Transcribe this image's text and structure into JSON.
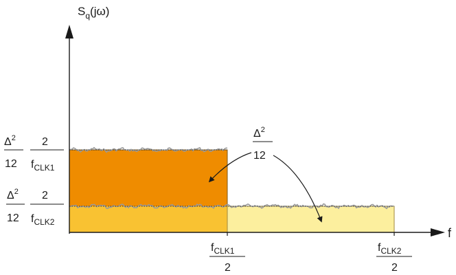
{
  "y_axis_label": {
    "main": "S",
    "sub": "q",
    "tail": "(jω)"
  },
  "x_axis_label": "f",
  "level_high": {
    "num_a": "Δ",
    "num_a_sup": "2",
    "den_a": "12",
    "num_b": "2",
    "den_b_main": "f",
    "den_b_sub": "CLK1"
  },
  "level_low": {
    "num_a": "Δ",
    "num_a_sup": "2",
    "den_a": "12",
    "num_b": "2",
    "den_b_main": "f",
    "den_b_sub": "CLK2"
  },
  "annotation": {
    "num": "Δ",
    "num_sup": "2",
    "den": "12"
  },
  "tick_1": {
    "num_main": "f",
    "num_sub": "CLK1",
    "den": "2"
  },
  "tick_2": {
    "num_main": "f",
    "num_sub": "CLK2",
    "den": "2"
  },
  "colors": {
    "band_high": "#ef8c00",
    "band_low_inner": "#f9c232",
    "band_low_outer": "#fcef9e",
    "noise_trace": "#9a9a9a",
    "axis": "#1a1a1a"
  }
}
